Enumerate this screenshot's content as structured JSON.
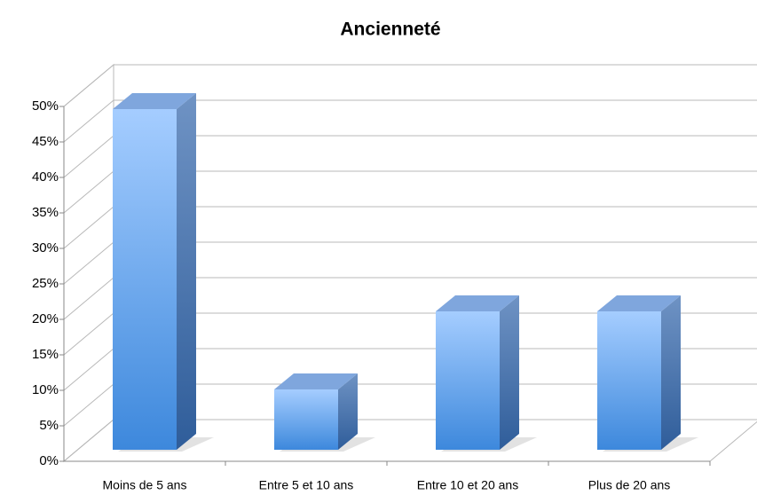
{
  "chart_data": {
    "type": "bar3d",
    "title": "Ancienneté",
    "categories": [
      "Moins de 5 ans",
      "Entre 5 et 10 ans",
      "Entre 10 et 20 ans",
      "Plus de 20 ans"
    ],
    "values": [
      48,
      8.5,
      19.5,
      19.5
    ],
    "color": "#5b9be8",
    "ylim": [
      0,
      50
    ],
    "yticks": [
      {
        "value": 0,
        "label": "0%"
      },
      {
        "value": 5,
        "label": "5%"
      },
      {
        "value": 10,
        "label": "10%"
      },
      {
        "value": 15,
        "label": "15%"
      },
      {
        "value": 20,
        "label": "20%"
      },
      {
        "value": 25,
        "label": "25%"
      },
      {
        "value": 30,
        "label": "30%"
      },
      {
        "value": 35,
        "label": "35%"
      },
      {
        "value": 40,
        "label": "40%"
      },
      {
        "value": 45,
        "label": "45%"
      },
      {
        "value": 50,
        "label": "50%"
      }
    ],
    "grid": true
  }
}
